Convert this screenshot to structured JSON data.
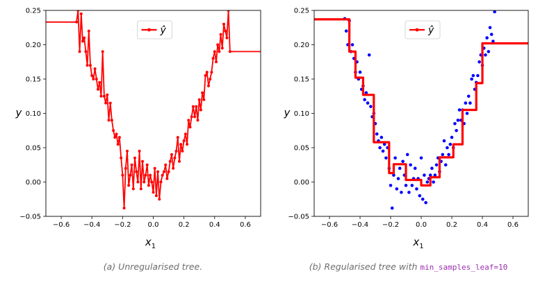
{
  "chart_data": [
    {
      "type": "line",
      "legend": [
        "ŷ"
      ],
      "legend_position": "top-center",
      "xlabel": "x",
      "xlabel_sub": "1",
      "ylabel": "y",
      "xlim": [
        -0.7,
        0.7
      ],
      "ylim": [
        -0.05,
        0.25
      ],
      "xticks": [
        -0.6,
        -0.4,
        -0.2,
        0.0,
        0.2,
        0.4,
        0.6
      ],
      "xtick_labels": [
        "−0.6",
        "−0.4",
        "−0.2",
        "0.0",
        "0.2",
        "0.4",
        "0.6"
      ],
      "yticks": [
        -0.05,
        0.0,
        0.05,
        0.1,
        0.15,
        0.2,
        0.25
      ],
      "ytick_labels": [
        "−0.05",
        "0.00",
        "0.05",
        "0.10",
        "0.15",
        "0.20",
        "0.25"
      ],
      "series": [
        {
          "name": "ŷ",
          "color": "#ff0000",
          "points": [
            [
              -0.7,
              0.233
            ],
            [
              -0.5,
              0.233
            ],
            [
              -0.49,
              0.25
            ],
            [
              -0.48,
              0.19
            ],
            [
              -0.47,
              0.245
            ],
            [
              -0.46,
              0.205
            ],
            [
              -0.45,
              0.21
            ],
            [
              -0.44,
              0.19
            ],
            [
              -0.43,
              0.17
            ],
            [
              -0.42,
              0.22
            ],
            [
              -0.41,
              0.17
            ],
            [
              -0.4,
              0.155
            ],
            [
              -0.39,
              0.15
            ],
            [
              -0.38,
              0.165
            ],
            [
              -0.37,
              0.15
            ],
            [
              -0.36,
              0.135
            ],
            [
              -0.35,
              0.145
            ],
            [
              -0.34,
              0.125
            ],
            [
              -0.33,
              0.19
            ],
            [
              -0.32,
              0.125
            ],
            [
              -0.31,
              0.115
            ],
            [
              -0.3,
              0.127
            ],
            [
              -0.29,
              0.09
            ],
            [
              -0.28,
              0.115
            ],
            [
              -0.27,
              0.09
            ],
            [
              -0.26,
              0.075
            ],
            [
              -0.25,
              0.065
            ],
            [
              -0.24,
              0.07
            ],
            [
              -0.23,
              0.055
            ],
            [
              -0.22,
              0.065
            ],
            [
              -0.21,
              0.035
            ],
            [
              -0.2,
              0.01
            ],
            [
              -0.19,
              -0.038
            ],
            [
              -0.18,
              0.02
            ],
            [
              -0.17,
              0.045
            ],
            [
              -0.16,
              -0.005
            ],
            [
              -0.15,
              0.01
            ],
            [
              -0.14,
              0.025
            ],
            [
              -0.13,
              -0.01
            ],
            [
              -0.12,
              0.035
            ],
            [
              -0.11,
              0.015
            ],
            [
              -0.1,
              0.0
            ],
            [
              -0.09,
              0.045
            ],
            [
              -0.08,
              -0.01
            ],
            [
              -0.07,
              0.03
            ],
            [
              -0.06,
              0.0
            ],
            [
              -0.05,
              0.01
            ],
            [
              -0.04,
              0.025
            ],
            [
              -0.03,
              -0.005
            ],
            [
              -0.02,
              0.01
            ],
            [
              -0.01,
              0.0
            ],
            [
              0.0,
              -0.015
            ],
            [
              0.01,
              0.02
            ],
            [
              0.02,
              -0.02
            ],
            [
              0.03,
              0.015
            ],
            [
              0.04,
              -0.025
            ],
            [
              0.05,
              0.0
            ],
            [
              0.06,
              0.01
            ],
            [
              0.07,
              0.015
            ],
            [
              0.08,
              0.025
            ],
            [
              0.09,
              0.005
            ],
            [
              0.1,
              0.015
            ],
            [
              0.11,
              0.03
            ],
            [
              0.12,
              0.04
            ],
            [
              0.13,
              0.02
            ],
            [
              0.14,
              0.035
            ],
            [
              0.15,
              0.045
            ],
            [
              0.16,
              0.065
            ],
            [
              0.17,
              0.03
            ],
            [
              0.18,
              0.055
            ],
            [
              0.19,
              0.045
            ],
            [
              0.2,
              0.06
            ],
            [
              0.21,
              0.07
            ],
            [
              0.22,
              0.055
            ],
            [
              0.23,
              0.09
            ],
            [
              0.24,
              0.08
            ],
            [
              0.25,
              0.095
            ],
            [
              0.26,
              0.11
            ],
            [
              0.27,
              0.095
            ],
            [
              0.28,
              0.11
            ],
            [
              0.29,
              0.09
            ],
            [
              0.3,
              0.12
            ],
            [
              0.31,
              0.105
            ],
            [
              0.32,
              0.13
            ],
            [
              0.33,
              0.12
            ],
            [
              0.34,
              0.155
            ],
            [
              0.35,
              0.16
            ],
            [
              0.36,
              0.14
            ],
            [
              0.37,
              0.15
            ],
            [
              0.38,
              0.16
            ],
            [
              0.39,
              0.18
            ],
            [
              0.4,
              0.19
            ],
            [
              0.41,
              0.175
            ],
            [
              0.42,
              0.2
            ],
            [
              0.43,
              0.19
            ],
            [
              0.44,
              0.215
            ],
            [
              0.45,
              0.195
            ],
            [
              0.46,
              0.23
            ],
            [
              0.47,
              0.22
            ],
            [
              0.48,
              0.21
            ],
            [
              0.49,
              0.25
            ],
            [
              0.5,
              0.19
            ],
            [
              0.7,
              0.19
            ]
          ]
        }
      ]
    },
    {
      "type": "line",
      "legend": [
        "ŷ"
      ],
      "legend_position": "top-center",
      "xlabel": "x",
      "xlabel_sub": "1",
      "ylabel": "y",
      "xlim": [
        -0.7,
        0.7
      ],
      "ylim": [
        -0.05,
        0.25
      ],
      "xticks": [
        -0.6,
        -0.4,
        -0.2,
        0.0,
        0.2,
        0.4,
        0.6
      ],
      "xtick_labels": [
        "−0.6",
        "−0.4",
        "−0.2",
        "0.0",
        "0.2",
        "0.4",
        "0.6"
      ],
      "yticks": [
        -0.05,
        0.0,
        0.05,
        0.1,
        0.15,
        0.2,
        0.25
      ],
      "ytick_labels": [
        "−0.05",
        "0.00",
        "0.05",
        "0.10",
        "0.15",
        "0.20",
        "0.25"
      ],
      "scatter": {
        "color": "#0000ff",
        "points": [
          [
            -0.5,
            0.238
          ],
          [
            -0.49,
            0.22
          ],
          [
            -0.48,
            0.2
          ],
          [
            -0.47,
            0.235
          ],
          [
            -0.46,
            0.19
          ],
          [
            -0.45,
            0.2
          ],
          [
            -0.44,
            0.18
          ],
          [
            -0.43,
            0.16
          ],
          [
            -0.42,
            0.175
          ],
          [
            -0.41,
            0.15
          ],
          [
            -0.4,
            0.16
          ],
          [
            -0.39,
            0.135
          ],
          [
            -0.38,
            0.14
          ],
          [
            -0.37,
            0.12
          ],
          [
            -0.36,
            0.13
          ],
          [
            -0.35,
            0.115
          ],
          [
            -0.34,
            0.185
          ],
          [
            -0.33,
            0.11
          ],
          [
            -0.32,
            0.095
          ],
          [
            -0.31,
            0.1
          ],
          [
            -0.3,
            0.085
          ],
          [
            -0.29,
            0.07
          ],
          [
            -0.28,
            0.06
          ],
          [
            -0.27,
            0.05
          ],
          [
            -0.26,
            0.065
          ],
          [
            -0.25,
            0.045
          ],
          [
            -0.24,
            0.055
          ],
          [
            -0.23,
            0.035
          ],
          [
            -0.22,
            0.05
          ],
          [
            -0.21,
            0.02
          ],
          [
            -0.2,
            -0.005
          ],
          [
            -0.19,
            -0.038
          ],
          [
            -0.18,
            0.01
          ],
          [
            -0.17,
            0.035
          ],
          [
            -0.16,
            -0.01
          ],
          [
            -0.15,
            0.005
          ],
          [
            -0.14,
            0.02
          ],
          [
            -0.13,
            -0.015
          ],
          [
            -0.12,
            0.03
          ],
          [
            -0.11,
            0.01
          ],
          [
            -0.1,
            -0.005
          ],
          [
            -0.09,
            0.04
          ],
          [
            -0.08,
            -0.015
          ],
          [
            -0.07,
            0.025
          ],
          [
            -0.06,
            -0.005
          ],
          [
            -0.05,
            0.005
          ],
          [
            -0.04,
            0.02
          ],
          [
            -0.03,
            -0.01
          ],
          [
            -0.02,
            0.005
          ],
          [
            -0.01,
            -0.02
          ],
          [
            0.0,
            0.035
          ],
          [
            0.01,
            -0.025
          ],
          [
            0.02,
            0.01
          ],
          [
            0.03,
            -0.03
          ],
          [
            0.04,
            0.0
          ],
          [
            0.05,
            0.005
          ],
          [
            0.06,
            0.01
          ],
          [
            0.07,
            0.02
          ],
          [
            0.08,
            0.0
          ],
          [
            0.09,
            0.01
          ],
          [
            0.1,
            0.025
          ],
          [
            0.11,
            0.035
          ],
          [
            0.12,
            0.015
          ],
          [
            0.13,
            0.03
          ],
          [
            0.14,
            0.04
          ],
          [
            0.15,
            0.06
          ],
          [
            0.16,
            0.025
          ],
          [
            0.17,
            0.05
          ],
          [
            0.18,
            0.04
          ],
          [
            0.19,
            0.055
          ],
          [
            0.2,
            0.065
          ],
          [
            0.21,
            0.05
          ],
          [
            0.22,
            0.085
          ],
          [
            0.23,
            0.075
          ],
          [
            0.24,
            0.09
          ],
          [
            0.25,
            0.105
          ],
          [
            0.26,
            0.09
          ],
          [
            0.27,
            0.105
          ],
          [
            0.28,
            0.085
          ],
          [
            0.29,
            0.115
          ],
          [
            0.3,
            0.1
          ],
          [
            0.31,
            0.125
          ],
          [
            0.32,
            0.115
          ],
          [
            0.33,
            0.15
          ],
          [
            0.34,
            0.155
          ],
          [
            0.35,
            0.135
          ],
          [
            0.36,
            0.145
          ],
          [
            0.37,
            0.155
          ],
          [
            0.38,
            0.175
          ],
          [
            0.39,
            0.185
          ],
          [
            0.4,
            0.17
          ],
          [
            0.41,
            0.195
          ],
          [
            0.42,
            0.185
          ],
          [
            0.43,
            0.21
          ],
          [
            0.44,
            0.19
          ],
          [
            0.45,
            0.225
          ],
          [
            0.46,
            0.215
          ],
          [
            0.47,
            0.205
          ],
          [
            0.48,
            0.248
          ]
        ]
      },
      "series": [
        {
          "name": "ŷ",
          "color": "#ff0000",
          "points": [
            [
              -0.7,
              0.237
            ],
            [
              -0.47,
              0.237
            ],
            [
              -0.47,
              0.19
            ],
            [
              -0.43,
              0.19
            ],
            [
              -0.43,
              0.152
            ],
            [
              -0.38,
              0.152
            ],
            [
              -0.38,
              0.127
            ],
            [
              -0.31,
              0.127
            ],
            [
              -0.31,
              0.058
            ],
            [
              -0.21,
              0.058
            ],
            [
              -0.21,
              0.013
            ],
            [
              -0.18,
              0.013
            ],
            [
              -0.18,
              0.026
            ],
            [
              -0.1,
              0.026
            ],
            [
              -0.1,
              0.003
            ],
            [
              0.0,
              0.003
            ],
            [
              0.0,
              -0.005
            ],
            [
              0.06,
              -0.005
            ],
            [
              0.06,
              0.007
            ],
            [
              0.12,
              0.007
            ],
            [
              0.12,
              0.036
            ],
            [
              0.21,
              0.036
            ],
            [
              0.21,
              0.055
            ],
            [
              0.27,
              0.055
            ],
            [
              0.27,
              0.105
            ],
            [
              0.36,
              0.105
            ],
            [
              0.36,
              0.144
            ],
            [
              0.4,
              0.144
            ],
            [
              0.4,
              0.202
            ],
            [
              0.7,
              0.202
            ]
          ]
        }
      ]
    }
  ],
  "captions": {
    "left": "(a) Unregularised tree.",
    "right_prefix": "(b) Regularised tree with ",
    "right_code": "min_samples_leaf=10"
  }
}
